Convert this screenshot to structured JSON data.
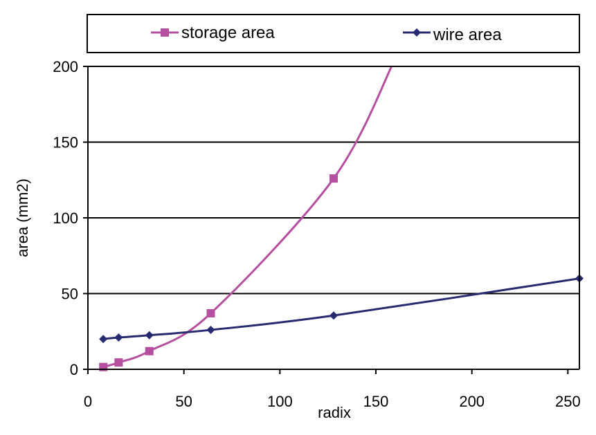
{
  "chart_data": {
    "type": "line",
    "title": "",
    "xlabel": "radix",
    "ylabel": "area (mm2)",
    "xlim": [
      0,
      256
    ],
    "ylim": [
      0,
      200
    ],
    "x_ticks": [
      0,
      50,
      100,
      150,
      200,
      250
    ],
    "y_ticks": [
      0,
      50,
      100,
      150,
      200
    ],
    "grid": "horizontal",
    "legend_position": "top",
    "series": [
      {
        "name": "storage area",
        "marker": "square",
        "color": "#b54fa0",
        "x": [
          8,
          16,
          32,
          64,
          128
        ],
        "y": [
          1.5,
          4.5,
          12,
          37,
          126
        ],
        "curve_continues_to": [
          160,
          205
        ]
      },
      {
        "name": "wire area",
        "marker": "diamond",
        "color": "#262a6e",
        "x": [
          8,
          16,
          32,
          64,
          128,
          256
        ],
        "y": [
          20,
          21,
          22.5,
          26,
          35.5,
          60
        ]
      }
    ]
  }
}
